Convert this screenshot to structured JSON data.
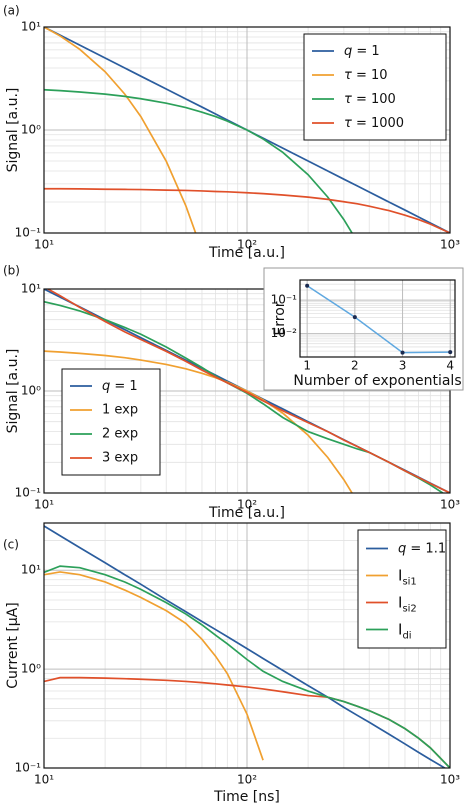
{
  "chart_data": [
    {
      "type": "line",
      "panel_label": "(a)",
      "xlabel": "Time [a.u.]",
      "ylabel": "Signal [a.u.]",
      "xscale": "log",
      "yscale": "log",
      "grid": true,
      "legend": "upper right",
      "x": [
        10,
        12,
        15,
        20,
        25,
        30,
        40,
        50,
        60,
        70,
        80,
        100,
        120,
        150,
        200,
        250,
        300,
        350,
        400,
        500,
        600,
        700,
        800,
        1000
      ],
      "series": [
        {
          "name": "q = 1",
          "color": "#2b5d9e",
          "values": [
            10,
            8.33,
            6.67,
            5,
            4,
            3.33,
            2.5,
            2,
            1.67,
            1.43,
            1.25,
            1,
            0.833,
            0.667,
            0.5,
            0.4,
            0.333,
            0.286,
            0.25,
            0.2,
            0.167,
            0.143,
            0.125,
            0.1
          ]
        },
        {
          "name": "τ = 10",
          "color": "#f0a030",
          "values": [
            10,
            8.19,
            6.07,
            3.68,
            2.23,
            1.35,
            0.498,
            0.183,
            0.0674,
            null,
            null,
            null,
            null,
            null,
            null,
            null,
            null,
            null,
            null,
            null,
            null,
            null,
            null,
            null
          ]
        },
        {
          "name": "τ = 100",
          "color": "#2ca05a",
          "values": [
            2.46,
            2.41,
            2.34,
            2.23,
            2.12,
            2.01,
            1.82,
            1.65,
            1.49,
            1.35,
            1.22,
            1.0,
            0.819,
            0.607,
            0.368,
            0.223,
            0.135,
            0.082,
            null,
            null,
            null,
            null,
            null,
            null
          ]
        },
        {
          "name": "τ = 1000",
          "color": "#e0502a",
          "values": [
            0.269,
            0.269,
            0.268,
            0.266,
            0.265,
            0.264,
            0.261,
            0.259,
            0.256,
            0.253,
            0.251,
            0.246,
            0.241,
            0.234,
            0.223,
            0.212,
            0.201,
            0.192,
            0.182,
            0.165,
            0.149,
            0.135,
            0.122,
            0.1
          ]
        }
      ],
      "xlim": [
        10,
        1000
      ],
      "ylim": [
        0.1,
        10
      ],
      "xticks": [
        {
          "value": 10,
          "label": "10¹"
        },
        {
          "value": 100,
          "label": "10²"
        },
        {
          "value": 1000,
          "label": "10³"
        }
      ],
      "yticks": [
        {
          "value": 0.1,
          "label": "10⁻¹"
        },
        {
          "value": 1,
          "label": "10⁰"
        },
        {
          "value": 10,
          "label": "10¹"
        }
      ],
      "xminor": [
        20,
        30,
        40,
        50,
        60,
        70,
        80,
        90,
        200,
        300,
        400,
        500,
        600,
        700,
        800,
        900
      ],
      "yminor": [
        0.2,
        0.3,
        0.4,
        0.5,
        0.6,
        0.7,
        0.8,
        0.9,
        2,
        3,
        4,
        5,
        6,
        7,
        8,
        9
      ]
    },
    {
      "type": "line",
      "panel_label": "(b)",
      "xlabel": "Time [a.u.]",
      "ylabel": "Signal [a.u.]",
      "xscale": "log",
      "yscale": "log",
      "grid": true,
      "legend": "lower left",
      "x": [
        10,
        12,
        15,
        20,
        25,
        30,
        40,
        50,
        60,
        70,
        80,
        100,
        120,
        150,
        200,
        250,
        300,
        350,
        400,
        500,
        600,
        700,
        800,
        1000
      ],
      "series": [
        {
          "name": "q = 1",
          "color": "#2b5d9e",
          "values": [
            10,
            8.33,
            6.67,
            5,
            4,
            3.33,
            2.5,
            2,
            1.67,
            1.43,
            1.25,
            1,
            0.833,
            0.667,
            0.5,
            0.4,
            0.333,
            0.286,
            0.25,
            0.2,
            0.167,
            0.143,
            0.125,
            0.1
          ]
        },
        {
          "name": "1 exp",
          "color": "#f0a030",
          "values": [
            2.46,
            2.41,
            2.34,
            2.23,
            2.12,
            2.01,
            1.82,
            1.65,
            1.49,
            1.35,
            1.22,
            1.0,
            0.819,
            0.607,
            0.368,
            0.223,
            0.135,
            0.082,
            null,
            null,
            null,
            null,
            null,
            null
          ]
        },
        {
          "name": "2 exp",
          "color": "#2ca05a",
          "values": [
            7.5,
            6.9,
            6.1,
            5.0,
            4.2,
            3.6,
            2.7,
            2.1,
            1.7,
            1.4,
            1.2,
            0.95,
            0.75,
            0.55,
            0.4,
            0.34,
            0.3,
            0.27,
            0.25,
            0.2,
            0.165,
            0.14,
            0.12,
            0.09
          ]
        },
        {
          "name": "3 exp",
          "color": "#e0502a",
          "values": [
            10.5,
            8.6,
            6.6,
            4.8,
            3.8,
            3.2,
            2.45,
            1.95,
            1.6,
            1.37,
            1.2,
            0.97,
            0.8,
            0.64,
            0.49,
            0.4,
            0.33,
            0.285,
            0.25,
            0.2,
            0.165,
            0.142,
            0.124,
            0.1
          ]
        }
      ],
      "xlim": [
        10,
        1000
      ],
      "ylim": [
        0.1,
        10
      ],
      "xticks": [
        {
          "value": 10,
          "label": "10¹"
        },
        {
          "value": 100,
          "label": "10²"
        },
        {
          "value": 1000,
          "label": "10³"
        }
      ],
      "yticks": [
        {
          "value": 0.1,
          "label": "10⁻¹"
        },
        {
          "value": 1,
          "label": "10⁰"
        },
        {
          "value": 10,
          "label": "10¹"
        }
      ],
      "xminor": [
        20,
        30,
        40,
        50,
        60,
        70,
        80,
        90,
        200,
        300,
        400,
        500,
        600,
        700,
        800,
        900
      ],
      "yminor": [
        0.2,
        0.3,
        0.4,
        0.5,
        0.6,
        0.7,
        0.8,
        0.9,
        2,
        3,
        4,
        5,
        6,
        7,
        8,
        9
      ]
    },
    {
      "type": "line",
      "panel_label": "(c)",
      "xlabel": "Time [ns]",
      "ylabel": "Current [μA]",
      "xscale": "log",
      "yscale": "log",
      "grid": true,
      "legend": "upper right",
      "x": [
        10,
        12,
        15,
        20,
        25,
        30,
        40,
        50,
        60,
        70,
        80,
        100,
        120,
        150,
        200,
        250,
        300,
        350,
        400,
        500,
        600,
        700,
        800,
        1000
      ],
      "series": [
        {
          "name": "q = 1.1",
          "color": "#2b5d9e",
          "values": [
            28,
            22.3,
            16.9,
            11.9,
            9.0,
            7.2,
            5.0,
            3.8,
            3.03,
            2.51,
            2.13,
            1.61,
            1.28,
            0.97,
            0.68,
            0.52,
            0.41,
            0.34,
            0.29,
            0.22,
            0.175,
            0.144,
            0.122,
            0.093
          ]
        },
        {
          "name": "Isi1",
          "color": "#f0a030",
          "values": [
            9,
            9.6,
            9.0,
            7.6,
            6.3,
            5.3,
            3.9,
            2.9,
            2.0,
            1.35,
            0.9,
            0.35,
            0.12,
            null,
            null,
            null,
            null,
            null,
            null,
            null,
            null,
            null,
            null,
            null
          ]
        },
        {
          "name": "Isi2",
          "color": "#e0502a",
          "values": [
            0.75,
            0.82,
            0.82,
            0.81,
            0.8,
            0.79,
            0.77,
            0.75,
            0.73,
            0.71,
            0.69,
            0.66,
            0.63,
            0.59,
            0.54,
            0.52,
            0.47,
            0.42,
            0.38,
            0.31,
            0.25,
            0.2,
            0.16,
            0.1
          ]
        },
        {
          "name": "Idi",
          "color": "#2ca05a",
          "values": [
            9.5,
            11,
            10.6,
            9,
            7.6,
            6.4,
            4.7,
            3.6,
            2.8,
            2.2,
            1.8,
            1.25,
            0.95,
            0.75,
            0.6,
            0.52,
            0.47,
            0.42,
            0.38,
            0.31,
            0.25,
            0.2,
            0.16,
            0.1
          ]
        }
      ],
      "xlim": [
        10,
        1000
      ],
      "ylim": [
        0.1,
        30
      ],
      "xticks": [
        {
          "value": 10,
          "label": "10¹"
        },
        {
          "value": 100,
          "label": "10²"
        },
        {
          "value": 1000,
          "label": "10³"
        }
      ],
      "yticks": [
        {
          "value": 0.1,
          "label": "10⁻¹"
        },
        {
          "value": 1,
          "label": "10⁰"
        },
        {
          "value": 10,
          "label": "10¹"
        }
      ],
      "xminor": [
        20,
        30,
        40,
        50,
        60,
        70,
        80,
        90,
        200,
        300,
        400,
        500,
        600,
        700,
        800,
        900
      ],
      "yminor": [
        0.2,
        0.3,
        0.4,
        0.5,
        0.6,
        0.7,
        0.8,
        0.9,
        2,
        3,
        4,
        5,
        6,
        7,
        8,
        9,
        20
      ]
    },
    {
      "type": "line",
      "xlabel": "Number of exponentials",
      "ylabel": "Error",
      "xscale": "linear",
      "yscale": "log",
      "grid": true,
      "markers": true,
      "x": [
        1,
        2,
        3,
        4
      ],
      "series": [
        {
          "color": "#5fa8e0",
          "marker_color": "#1a2a50",
          "values": [
            0.27,
            0.031,
            0.0027,
            0.0028
          ]
        }
      ],
      "xlim": [
        0.85,
        4.1
      ],
      "ylim": [
        0.002,
        0.4
      ],
      "xticks": [
        1,
        2,
        3,
        4
      ],
      "yticks": [
        {
          "value": 0.01,
          "label": "10⁻²"
        },
        {
          "value": 0.1,
          "label": "10⁻¹"
        }
      ],
      "xminor": [],
      "yminor": [
        0.003,
        0.004,
        0.005,
        0.006,
        0.007,
        0.008,
        0.009,
        0.02,
        0.03,
        0.04,
        0.05,
        0.06,
        0.07,
        0.08,
        0.09,
        0.2,
        0.3
      ]
    }
  ]
}
